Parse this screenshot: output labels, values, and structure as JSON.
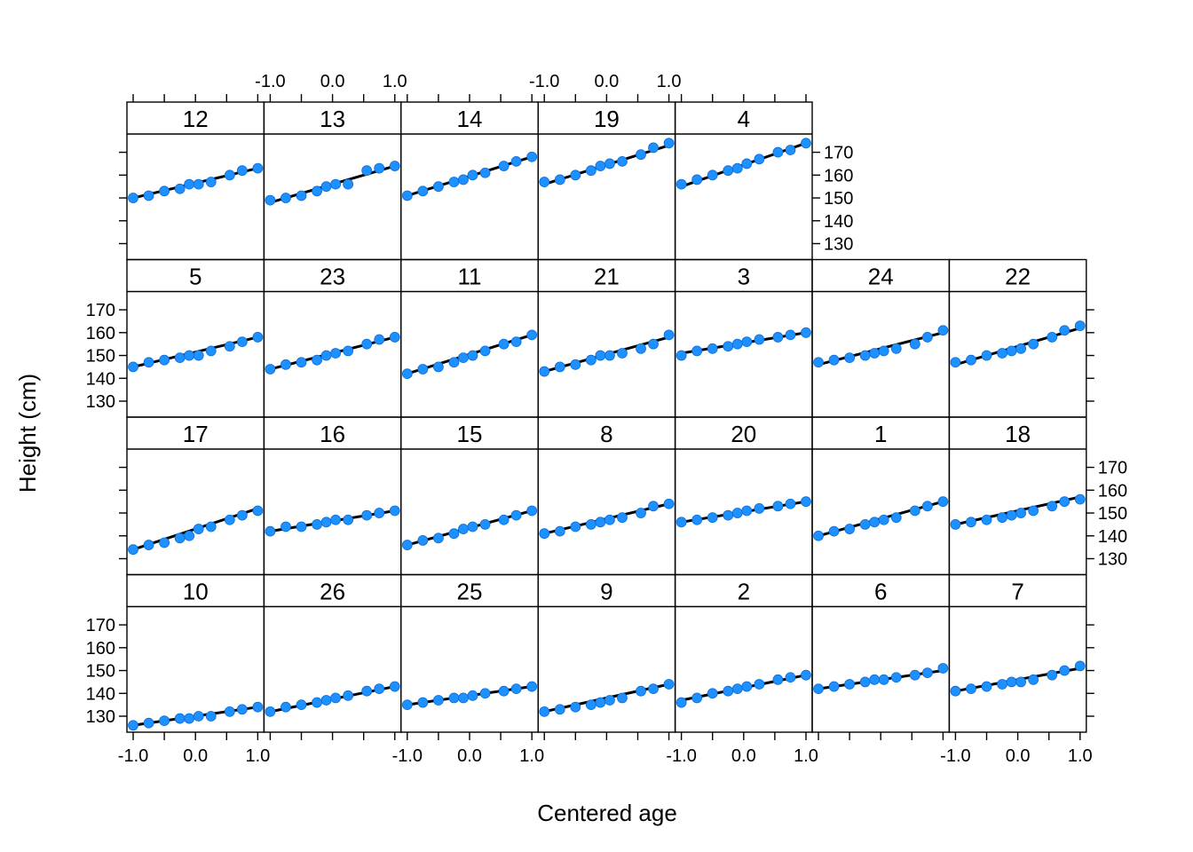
{
  "chart_data": {
    "type": "scatter",
    "xlabel": "Centered age",
    "ylabel": "Height (cm)",
    "xlim": [
      -1.1,
      1.1
    ],
    "ylim": [
      123,
      178
    ],
    "x_ticks": [
      -1.0,
      -0.5,
      0.0,
      0.5,
      1.0
    ],
    "x_tick_labels": [
      "-1.0",
      "0.0",
      "1.0"
    ],
    "y_ticks": [
      130,
      140,
      150,
      160,
      170
    ],
    "y_tick_labels": [
      "130",
      "140",
      "150",
      "160",
      "170"
    ],
    "x": [
      -1.0,
      -0.75,
      -0.5,
      -0.25,
      -0.1,
      0.05,
      0.25,
      0.55,
      0.75,
      1.0
    ],
    "point_color": "#1e90ff",
    "line_color": "#000000",
    "rows": [
      [
        "10",
        "26",
        "25",
        "9",
        "2",
        "6",
        "7"
      ],
      [
        "17",
        "16",
        "15",
        "8",
        "20",
        "1",
        "18"
      ],
      [
        "5",
        "23",
        "11",
        "21",
        "3",
        "24",
        "22"
      ],
      [
        "12",
        "13",
        "14",
        "19",
        "4"
      ]
    ],
    "panels": [
      {
        "label": "12",
        "y": [
          150,
          151,
          153,
          154,
          156,
          156,
          157,
          160,
          162,
          163
        ],
        "fit": [
          150,
          163
        ]
      },
      {
        "label": "13",
        "y": [
          149,
          150,
          151,
          153,
          155,
          156,
          156,
          162,
          163,
          164
        ],
        "fit": [
          148,
          164
        ]
      },
      {
        "label": "14",
        "y": [
          151,
          153,
          155,
          157,
          158,
          160,
          161,
          164,
          166,
          168
        ],
        "fit": [
          151,
          168
        ]
      },
      {
        "label": "19",
        "y": [
          157,
          158,
          160,
          162,
          164,
          165,
          166,
          169,
          172,
          174
        ],
        "fit": [
          156,
          173
        ]
      },
      {
        "label": "4",
        "y": [
          156,
          158,
          160,
          162,
          163,
          165,
          167,
          170,
          171,
          174
        ],
        "fit": [
          155,
          174
        ]
      },
      {
        "label": "5",
        "y": [
          145,
          147,
          148,
          149,
          150,
          150,
          152,
          154,
          156,
          158
        ],
        "fit": [
          145,
          158
        ]
      },
      {
        "label": "23",
        "y": [
          144,
          146,
          147,
          148,
          150,
          151,
          152,
          155,
          157,
          158
        ],
        "fit": [
          144,
          158
        ]
      },
      {
        "label": "11",
        "y": [
          142,
          144,
          145,
          147,
          149,
          150,
          152,
          155,
          156,
          159
        ],
        "fit": [
          142,
          159
        ]
      },
      {
        "label": "21",
        "y": [
          143,
          145,
          146,
          148,
          150,
          150,
          151,
          153,
          155,
          159
        ],
        "fit": [
          143,
          158
        ]
      },
      {
        "label": "3",
        "y": [
          150,
          152,
          153,
          154,
          155,
          156,
          157,
          158,
          159,
          160
        ],
        "fit": [
          151,
          160
        ]
      },
      {
        "label": "24",
        "y": [
          147,
          148,
          149,
          150,
          151,
          152,
          153,
          155,
          158,
          161
        ],
        "fit": [
          146,
          160
        ]
      },
      {
        "label": "22",
        "y": [
          147,
          148,
          150,
          151,
          152,
          153,
          155,
          158,
          161,
          163
        ],
        "fit": [
          146,
          162
        ]
      },
      {
        "label": "17",
        "y": [
          134,
          136,
          137,
          139,
          140,
          143,
          144,
          147,
          149,
          151
        ],
        "fit": [
          134,
          152
        ]
      },
      {
        "label": "16",
        "y": [
          142,
          144,
          144,
          145,
          146,
          147,
          147,
          149,
          150,
          151
        ],
        "fit": [
          142,
          151
        ]
      },
      {
        "label": "15",
        "y": [
          136,
          138,
          139,
          141,
          143,
          144,
          145,
          147,
          149,
          151
        ],
        "fit": [
          136,
          151
        ]
      },
      {
        "label": "8",
        "y": [
          141,
          142,
          144,
          145,
          146,
          147,
          148,
          150,
          153,
          154
        ],
        "fit": [
          141,
          154
        ]
      },
      {
        "label": "20",
        "y": [
          146,
          147,
          148,
          149,
          150,
          151,
          152,
          153,
          154,
          155
        ],
        "fit": [
          146,
          155
        ]
      },
      {
        "label": "1",
        "y": [
          140,
          142,
          143,
          145,
          146,
          147,
          148,
          151,
          153,
          155
        ],
        "fit": [
          140,
          155
        ]
      },
      {
        "label": "18",
        "y": [
          145,
          146,
          147,
          148,
          149,
          150,
          151,
          153,
          155,
          156
        ],
        "fit": [
          145,
          157
        ]
      },
      {
        "label": "10",
        "y": [
          126,
          127,
          128,
          129,
          129,
          130,
          130,
          132,
          133,
          134
        ],
        "fit": [
          126,
          134
        ]
      },
      {
        "label": "26",
        "y": [
          132,
          134,
          135,
          136,
          137,
          138,
          139,
          141,
          142,
          143
        ],
        "fit": [
          132,
          143
        ]
      },
      {
        "label": "25",
        "y": [
          135,
          136,
          137,
          138,
          138,
          139,
          140,
          141,
          142,
          143
        ],
        "fit": [
          135,
          143
        ]
      },
      {
        "label": "9",
        "y": [
          132,
          133,
          134,
          135,
          136,
          137,
          138,
          141,
          142,
          144
        ],
        "fit": [
          132,
          144
        ]
      },
      {
        "label": "2",
        "y": [
          136,
          138,
          140,
          141,
          142,
          143,
          144,
          146,
          147,
          148
        ],
        "fit": [
          137,
          148
        ]
      },
      {
        "label": "6",
        "y": [
          142,
          143,
          144,
          145,
          146,
          146,
          147,
          148,
          149,
          151
        ],
        "fit": [
          142,
          150
        ]
      },
      {
        "label": "7",
        "y": [
          141,
          142,
          143,
          144,
          145,
          145,
          146,
          148,
          150,
          152
        ],
        "fit": [
          141,
          151
        ]
      }
    ]
  }
}
